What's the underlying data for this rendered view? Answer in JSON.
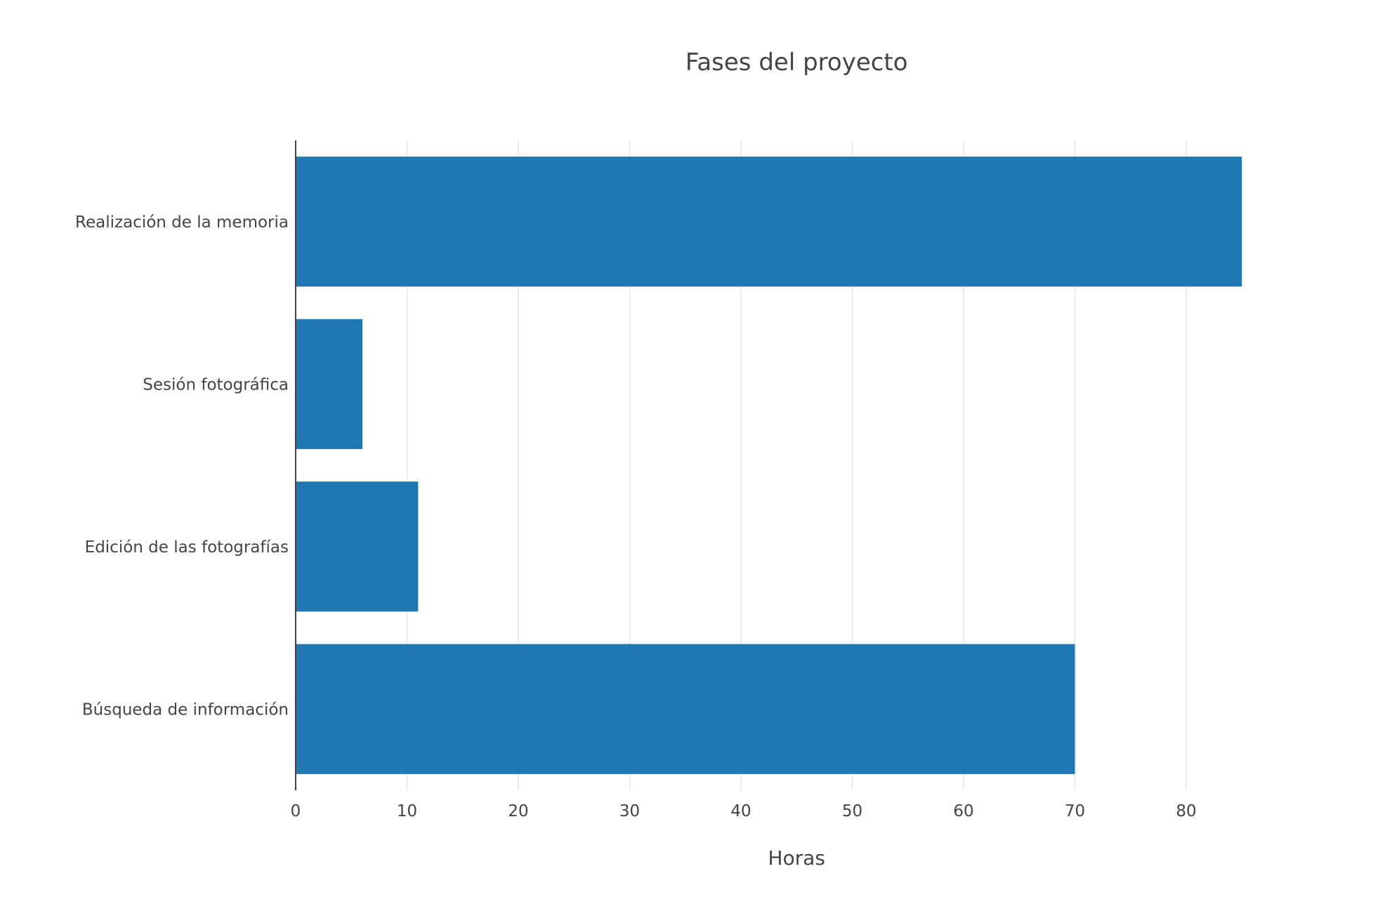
{
  "chart_data": {
    "type": "bar",
    "orientation": "horizontal",
    "title": "Fases del proyecto",
    "xlabel": "Horas",
    "ylabel": "",
    "categories": [
      "Realización de la memoria",
      "Sesión fotográfica",
      "Edición de las fotografías",
      "Búsqueda de información"
    ],
    "values": [
      85,
      6,
      11,
      70
    ],
    "xlim": [
      0,
      90
    ],
    "xticks": [
      0,
      10,
      20,
      30,
      40,
      50,
      60,
      70,
      80
    ],
    "grid": "vertical",
    "legend": "none",
    "colors": {
      "bar": "#1f77b4",
      "text": "#444444",
      "grid": "#ebebeb",
      "background": "#ffffff"
    }
  }
}
